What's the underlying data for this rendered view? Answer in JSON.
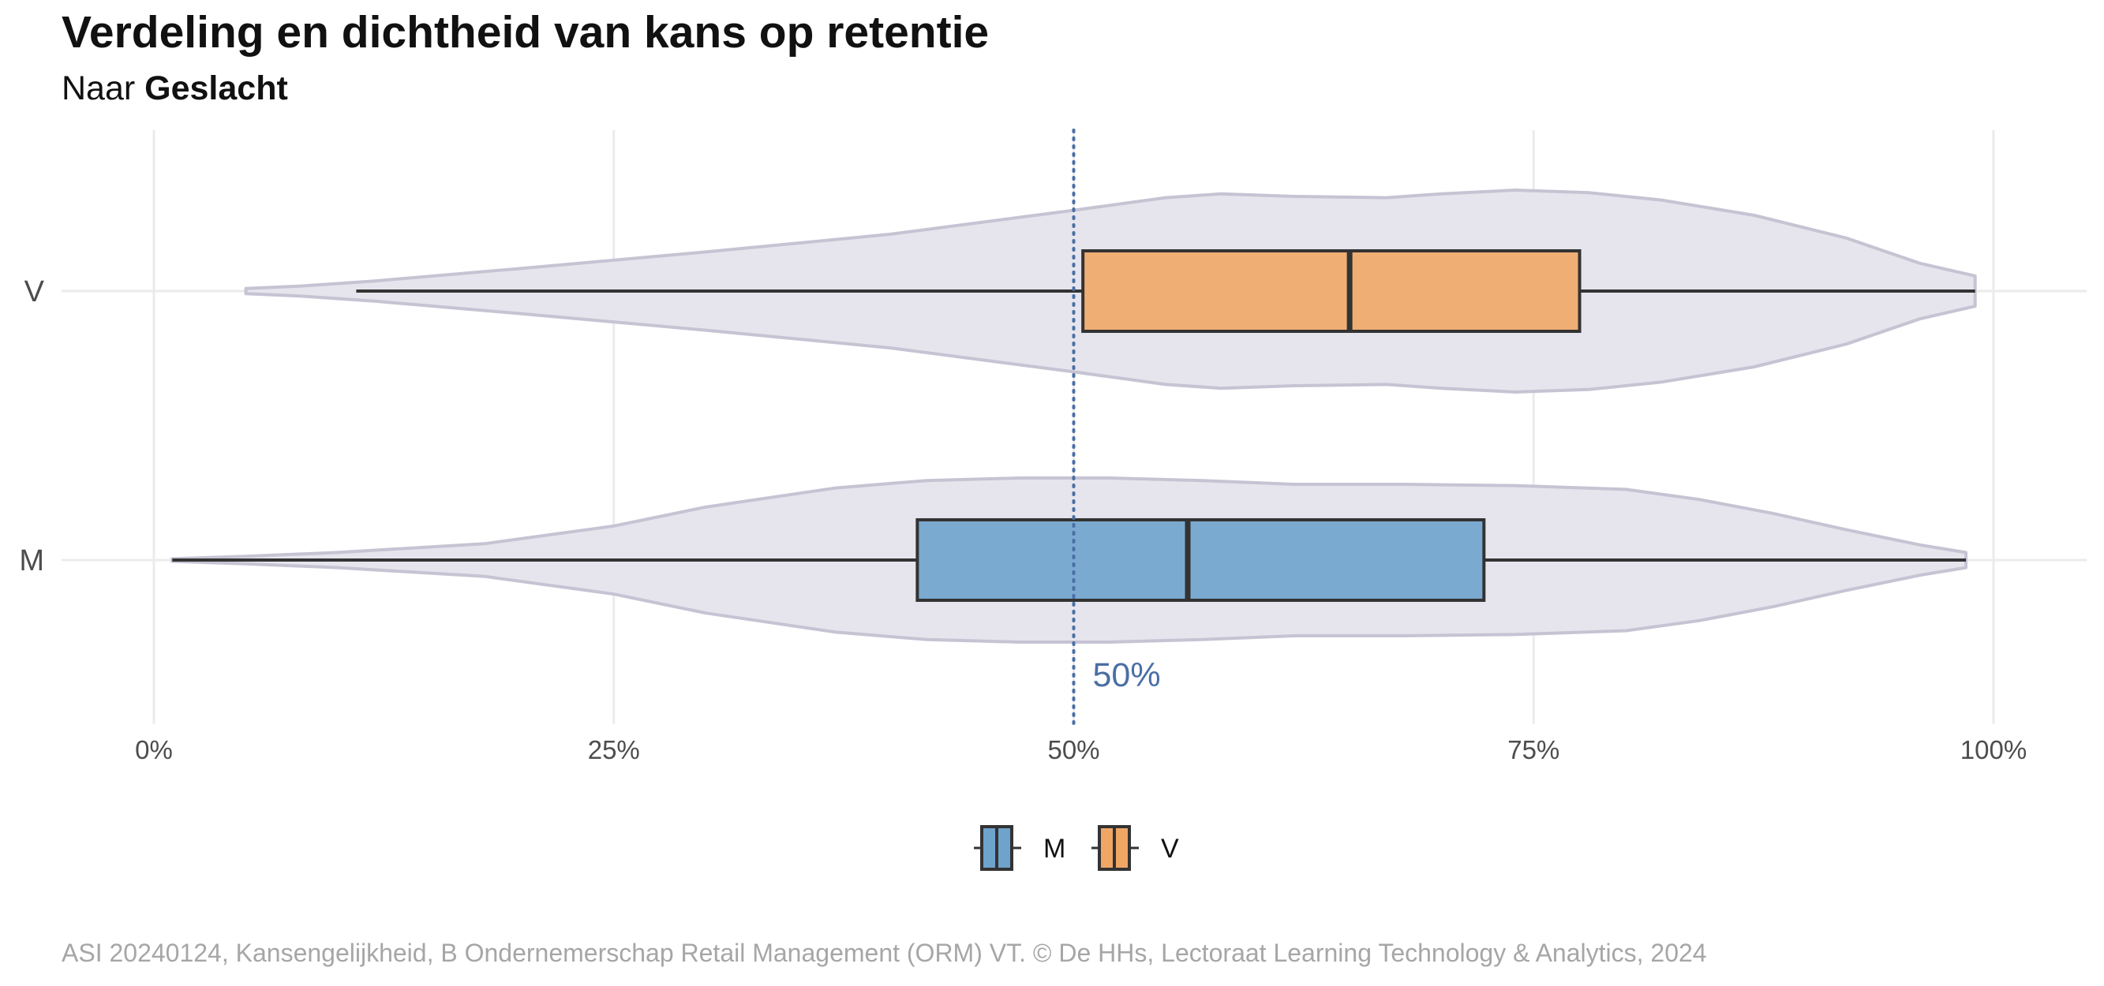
{
  "title": "Verdeling en dichtheid van kans op retentie",
  "subtitle_prefix": "Naar",
  "subtitle_group": "Geslacht",
  "caption": "ASI 20240124, Kansengelijkheid, B Ondernemerschap Retail Management (ORM) VT. © De HHs, Lectoraat Learning Technology & Analytics, 2024",
  "reference_line": {
    "value": 50,
    "label": "50%",
    "color": "#4a6fa5",
    "style": "dotted"
  },
  "chart_data": {
    "type": "boxplot-violin",
    "orientation": "horizontal",
    "title": "Verdeling en dichtheid van kans op retentie",
    "subtitle": "Naar Geslacht",
    "xlim": [
      0,
      100
    ],
    "x_ticks": [
      0,
      25,
      50,
      75,
      100
    ],
    "x_tick_labels": [
      "0%",
      "25%",
      "50%",
      "75%",
      "100%"
    ],
    "xlabel": "",
    "ylabel": "",
    "categories": [
      "V",
      "M"
    ],
    "grid": true,
    "legend_position": "bottom",
    "legend": [
      {
        "name": "M",
        "color": "#6ea3cc"
      },
      {
        "name": "V",
        "color": "#f0a766"
      }
    ],
    "violin_color": "#e6e5ed",
    "violin_outline": "#c6c3d3",
    "series": [
      {
        "name": "V",
        "color": "#f0a766",
        "box": {
          "whisker_low": 11,
          "q1": 50.5,
          "median": 65,
          "q3": 77.5,
          "whisker_high": 99
        },
        "violin_range": [
          5,
          99
        ],
        "density": [
          [
            5,
            0.02
          ],
          [
            8,
            0.04
          ],
          [
            12,
            0.08
          ],
          [
            20,
            0.18
          ],
          [
            30,
            0.31
          ],
          [
            40,
            0.45
          ],
          [
            50,
            0.64
          ],
          [
            55,
            0.74
          ],
          [
            58,
            0.77
          ],
          [
            62,
            0.75
          ],
          [
            67,
            0.74
          ],
          [
            70,
            0.77
          ],
          [
            74,
            0.8
          ],
          [
            78,
            0.78
          ],
          [
            82,
            0.72
          ],
          [
            87,
            0.6
          ],
          [
            92,
            0.42
          ],
          [
            96,
            0.22
          ],
          [
            99,
            0.12
          ]
        ]
      },
      {
        "name": "M",
        "color": "#6ea3cc",
        "box": {
          "whisker_low": 1,
          "q1": 41.5,
          "median": 56.2,
          "q3": 72.3,
          "whisker_high": 98.5
        },
        "violin_range": [
          1,
          98.5
        ],
        "density": [
          [
            1,
            0.01
          ],
          [
            5,
            0.03
          ],
          [
            10,
            0.06
          ],
          [
            18,
            0.13
          ],
          [
            25,
            0.27
          ],
          [
            30,
            0.42
          ],
          [
            37,
            0.57
          ],
          [
            42,
            0.63
          ],
          [
            47,
            0.65
          ],
          [
            52,
            0.65
          ],
          [
            57,
            0.63
          ],
          [
            62,
            0.6
          ],
          [
            68,
            0.6
          ],
          [
            74,
            0.59
          ],
          [
            80,
            0.56
          ],
          [
            84,
            0.48
          ],
          [
            88,
            0.37
          ],
          [
            92,
            0.24
          ],
          [
            96,
            0.12
          ],
          [
            98.5,
            0.06
          ]
        ]
      }
    ]
  }
}
